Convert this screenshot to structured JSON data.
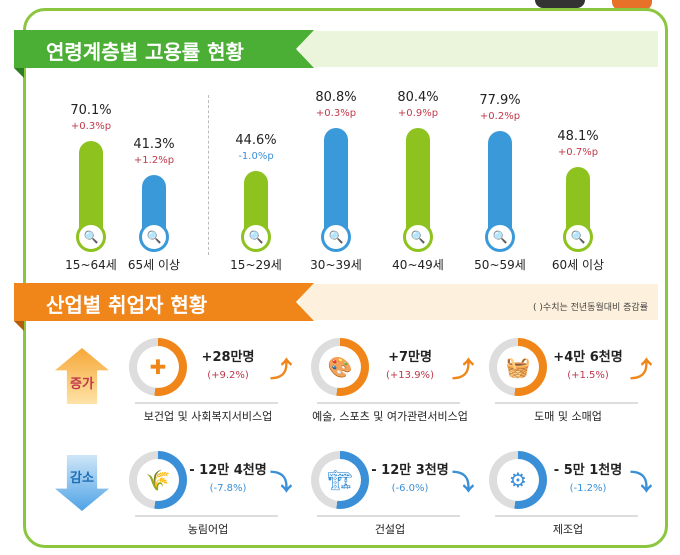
{
  "age_section": {
    "title": "연령계층별 고용률 현황",
    "columns": [
      {
        "label": "15~64세",
        "rate": "70.1%",
        "change": "+0.3%p",
        "value": 70.1,
        "color": "#8dc21f",
        "up": true
      },
      {
        "label": "65세 이상",
        "rate": "41.3%",
        "change": "+1.2%p",
        "value": 41.3,
        "color": "#3a9ad9",
        "up": true
      },
      {
        "label": "15~29세",
        "rate": "44.6%",
        "change": "-1.0%p",
        "value": 44.6,
        "color": "#8dc21f",
        "up": false
      },
      {
        "label": "30~39세",
        "rate": "80.8%",
        "change": "+0.3%p",
        "value": 80.8,
        "color": "#3a9ad9",
        "up": true
      },
      {
        "label": "40~49세",
        "rate": "80.4%",
        "change": "+0.9%p",
        "value": 80.4,
        "color": "#8dc21f",
        "up": true
      },
      {
        "label": "50~59세",
        "rate": "77.9%",
        "change": "+0.2%p",
        "value": 77.9,
        "color": "#3a9ad9",
        "up": true
      },
      {
        "label": "60세 이상",
        "rate": "48.1%",
        "change": "+0.7%p",
        "value": 48.1,
        "color": "#8dc21f",
        "up": true
      }
    ]
  },
  "industry_section": {
    "title": "산업별 취업자 현황",
    "note": "( )수치는 전년동월대비 증감률",
    "increase_label": "증가",
    "decrease_label": "감소",
    "increase": [
      {
        "name": "보건업 및 사회복지서비스업",
        "value": "+28만명",
        "rate": "(+9.2%)",
        "icon": "✚"
      },
      {
        "name": "예술, 스포츠 및 여가관련서비스업",
        "value": "+7만명",
        "rate": "(+13.9%)",
        "icon": "🎨"
      },
      {
        "name": "도매 및 소매업",
        "value": "+4만 6천명",
        "rate": "(+1.5%)",
        "icon": "🧺"
      }
    ],
    "decrease": [
      {
        "name": "농림어업",
        "value": "- 12만 4천명",
        "rate": "(-7.8%)",
        "icon": "🌾"
      },
      {
        "name": "건설업",
        "value": "- 12만 3천명",
        "rate": "(-6.0%)",
        "icon": "🏗"
      },
      {
        "name": "제조업",
        "value": "- 5만 1천명",
        "rate": "(-1.2%)",
        "icon": "⚙"
      }
    ]
  },
  "colors": {
    "green": "#4caf35",
    "orange": "#f08519",
    "blue": "#3a8fd6",
    "red": "#c0394b"
  }
}
